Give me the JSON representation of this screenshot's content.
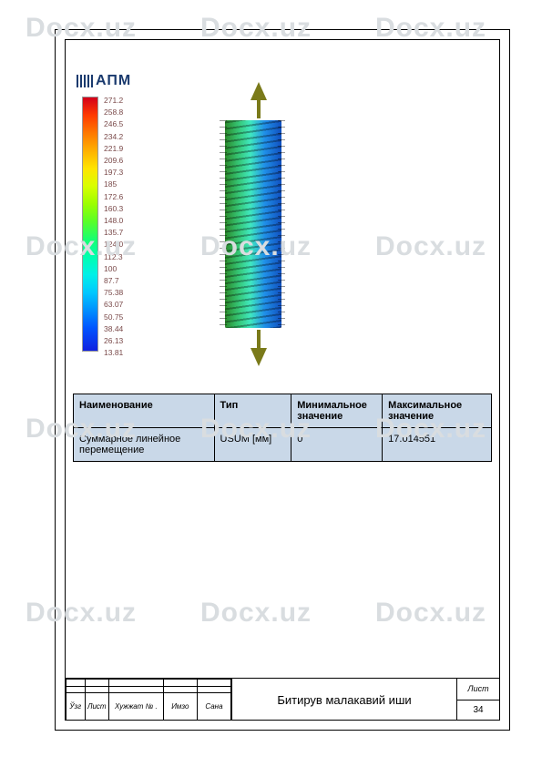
{
  "watermark": "Docx.uz",
  "watermark_color": "#d9dde0",
  "logo_text": "АПМ",
  "colorbar": {
    "values": [
      "271.2",
      "258.8",
      "246.5",
      "234.2",
      "221.9",
      "209.6",
      "197.3",
      "185",
      "172.6",
      "160.3",
      "148.0",
      "135.7",
      "124.0",
      "112.3",
      "100",
      "87.7",
      "75.38",
      "63.07",
      "50.75",
      "38.44",
      "26.13",
      "13.81"
    ],
    "label_color": "#7a4a4a",
    "label_fontsize": 8.5,
    "gradient_stops": [
      "#d3001a",
      "#ff3a00",
      "#ff7800",
      "#ffb000",
      "#ffe400",
      "#d8ff00",
      "#9cff00",
      "#58ff28",
      "#18ff70",
      "#00ffb0",
      "#00f0e8",
      "#00c8ff",
      "#0090ff",
      "#0054ff",
      "#1020e0"
    ]
  },
  "arrow_color": "#7a7a1a",
  "results_table": {
    "background": "#c9d8e8",
    "headers": {
      "name": "Наименование",
      "type": "Тип",
      "min": "Минимальное значение",
      "max": "Максимальное значение"
    },
    "row": {
      "name": "Суммарное линейное перемещение",
      "type": "USUM [мм]",
      "min": "0",
      "max": "17.014551"
    }
  },
  "titleblock": {
    "left_headers": [
      "Ўзг",
      "Лист",
      "Хужжат № .",
      "Имзо",
      "Сана"
    ],
    "center": "Битирув малакавий иши",
    "list_label": "Лист",
    "page_number": "34"
  }
}
